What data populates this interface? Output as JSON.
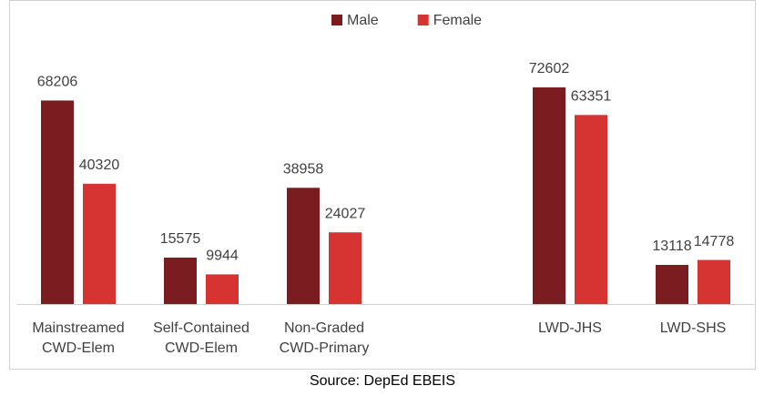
{
  "chart_data": {
    "type": "bar",
    "categories": [
      "Mainstreamed CWD-Elem",
      "Self-Contained CWD-Elem",
      "Non-Graded CWD-Primary",
      null,
      "LWD-JHS",
      "LWD-SHS"
    ],
    "series": [
      {
        "name": "Male",
        "color": "#7b1d20",
        "values": [
          68206,
          15575,
          38958,
          null,
          72602,
          13118
        ]
      },
      {
        "name": "Female",
        "color": "#d63333",
        "values": [
          40320,
          9944,
          24027,
          null,
          63351,
          14778
        ]
      }
    ],
    "legend": "top",
    "source": "Source: DepEd EBEIS"
  }
}
